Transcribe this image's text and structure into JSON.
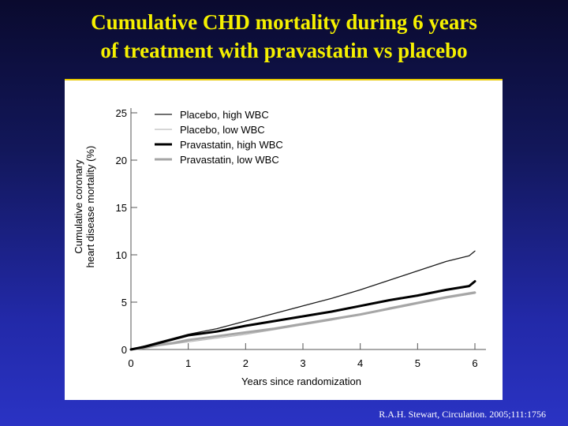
{
  "slide": {
    "title_line1": "Cumulative CHD mortality during 6 years",
    "title_line2": "of treatment with pravastatin vs placebo",
    "citation": "R.A.H. Stewart, Circulation. 2005;111:1756"
  },
  "colors": {
    "title": "#f5f000",
    "panel_border": "#e8c800",
    "placebo_high": "#1a1a1a",
    "placebo_low": "#bdbdbd",
    "pravastatin_high": "#000000",
    "pravastatin_low": "#a6a6a6"
  },
  "chart_data": {
    "type": "line",
    "title": "",
    "xlabel": "Years since randomization",
    "ylabel_line1": "Cumulative coronary",
    "ylabel_line2": "heart disease mortality (%)",
    "xlim": [
      0,
      6
    ],
    "ylim": [
      0,
      25
    ],
    "x_ticks": [
      0,
      1,
      2,
      3,
      4,
      5,
      6
    ],
    "y_ticks": [
      0,
      5,
      10,
      15,
      20,
      25
    ],
    "grid": false,
    "legend_position": "top-left",
    "series": [
      {
        "name": "Placebo, high WBC",
        "color": "#1a1a1a",
        "width": "thin",
        "x": [
          0,
          0.25,
          0.5,
          0.75,
          1,
          1.5,
          2,
          2.5,
          3,
          3.5,
          4,
          4.5,
          5,
          5.5,
          5.9,
          6
        ],
        "y": [
          0,
          0.4,
          0.8,
          1.2,
          1.6,
          2.2,
          3.0,
          3.8,
          4.6,
          5.4,
          6.3,
          7.3,
          8.3,
          9.3,
          9.9,
          10.4
        ]
      },
      {
        "name": "Placebo, low WBC",
        "color": "#bdbdbd",
        "width": "thin",
        "x": [
          0,
          0.25,
          0.5,
          0.75,
          1,
          1.5,
          2,
          2.5,
          3,
          3.5,
          4,
          4.5,
          5,
          5.5,
          6
        ],
        "y": [
          0,
          0.2,
          0.4,
          0.6,
          0.8,
          1.2,
          1.6,
          2.1,
          2.6,
          3.1,
          3.7,
          4.4,
          5.0,
          5.6,
          6.1
        ]
      },
      {
        "name": "Pravastatin, high WBC",
        "color": "#000000",
        "width": "thick",
        "x": [
          0,
          0.25,
          0.5,
          0.75,
          1,
          1.5,
          2,
          2.5,
          3,
          3.5,
          4,
          4.5,
          5,
          5.5,
          5.9,
          6
        ],
        "y": [
          0,
          0.3,
          0.7,
          1.1,
          1.5,
          1.9,
          2.5,
          3.0,
          3.5,
          4.0,
          4.6,
          5.2,
          5.7,
          6.3,
          6.7,
          7.2
        ]
      },
      {
        "name": "Pravastatin, low WBC",
        "color": "#a6a6a6",
        "width": "thick",
        "x": [
          0,
          0.25,
          0.5,
          0.75,
          1,
          1.5,
          2,
          2.5,
          3,
          3.5,
          4,
          4.5,
          5,
          5.5,
          6
        ],
        "y": [
          0,
          0.2,
          0.5,
          0.7,
          1.0,
          1.4,
          1.8,
          2.2,
          2.7,
          3.2,
          3.7,
          4.3,
          4.9,
          5.5,
          6.0
        ]
      }
    ]
  }
}
